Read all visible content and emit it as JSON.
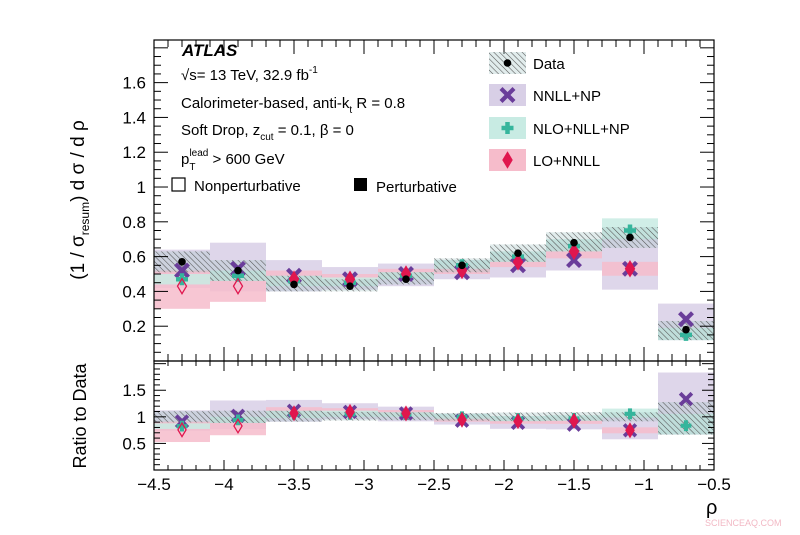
{
  "chart_data": {
    "type": "scatter",
    "experiment": "ATLAS",
    "annotations": {
      "energy": {
        "pre": "√s= 13 TeV, 32.9 fb",
        "sup": "-1"
      },
      "jets": {
        "pre": "Calorimeter-based, anti-k",
        "sub": "t",
        "post": " R = 0.8"
      },
      "grooming": {
        "pre": "Soft Drop, z",
        "sub": "cut",
        "post": " = 0.1, β = 0"
      },
      "pt": {
        "pre": "p",
        "sub": "T",
        "sup": "lead",
        "post": " > 600 GeV"
      },
      "nonpert": "Nonperturbative",
      "pert": "Perturbative"
    },
    "ylabel": {
      "pre": "(1 / σ",
      "sub": "resum",
      "post": ") d σ / d ρ"
    },
    "ratio_ylabel": "Ratio to Data",
    "xlabel": "ρ",
    "xlim": [
      -4.5,
      -0.5
    ],
    "ylim": [
      0,
      1.845
    ],
    "ratio_ylim": [
      0,
      2.05
    ],
    "x_ticks": [
      "-4.5",
      "-4",
      "-3.5",
      "-3",
      "-2.5",
      "-2",
      "-1.5",
      "-1",
      "-0.5"
    ],
    "y_ticks": [
      "0.2",
      "0.4",
      "0.6",
      "0.8",
      "1",
      "1.2",
      "1.4",
      "1.6"
    ],
    "ratio_y_ticks": [
      "0.5",
      "1",
      "1.5"
    ],
    "bin_edges": [
      -4.5,
      -4.1,
      -3.7,
      -3.3,
      -2.9,
      -2.5,
      -2.1,
      -1.7,
      -1.3,
      -0.9,
      -0.5
    ],
    "series": [
      {
        "name": "Data",
        "color": "#000000",
        "marker": "circle",
        "values": [
          0.57,
          0.52,
          0.44,
          0.43,
          0.47,
          0.55,
          0.62,
          0.68,
          0.71,
          0.18
        ],
        "band": [
          [
            0.51,
            0.63
          ],
          [
            0.46,
            0.58
          ],
          [
            0.4,
            0.49
          ],
          [
            0.4,
            0.47
          ],
          [
            0.44,
            0.51
          ],
          [
            0.51,
            0.59
          ],
          [
            0.57,
            0.67
          ],
          [
            0.63,
            0.74
          ],
          [
            0.65,
            0.77
          ],
          [
            0.12,
            0.23
          ]
        ]
      },
      {
        "name": "NNLL+NP",
        "color": "#6a3d9a",
        "band_color": "#d8cfe6",
        "marker": "x",
        "values": [
          0.52,
          0.53,
          0.49,
          0.47,
          0.5,
          0.51,
          0.55,
          0.58,
          0.53,
          0.24
        ],
        "band": [
          [
            0.42,
            0.64
          ],
          [
            0.4,
            0.68
          ],
          [
            0.4,
            0.58
          ],
          [
            0.41,
            0.54
          ],
          [
            0.43,
            0.56
          ],
          [
            0.47,
            0.58
          ],
          [
            0.48,
            0.62
          ],
          [
            0.52,
            0.68
          ],
          [
            0.41,
            0.71
          ],
          [
            0.12,
            0.33
          ]
        ]
      },
      {
        "name": "NLO+NLL+NP",
        "color": "#35b59c",
        "band_color": "#c8ebe3",
        "marker": "plus",
        "values": [
          0.47,
          0.49,
          0.46,
          0.45,
          0.49,
          0.55,
          0.6,
          0.66,
          0.75,
          0.15
        ],
        "band": [
          [
            0.44,
            0.5
          ],
          [
            0.46,
            0.52
          ],
          [
            0.43,
            0.49
          ],
          [
            0.43,
            0.48
          ],
          [
            0.47,
            0.51
          ],
          [
            0.53,
            0.58
          ],
          [
            0.57,
            0.63
          ],
          [
            0.63,
            0.7
          ],
          [
            0.7,
            0.82
          ],
          [
            0.12,
            0.19
          ]
        ]
      },
      {
        "name": "LO+NNLL",
        "color": "#e0174e",
        "band_color": "#f6bccb",
        "marker": "diamond",
        "open": [
          true,
          true,
          false,
          false,
          false,
          false,
          false,
          false,
          false,
          false
        ],
        "values": [
          0.43,
          0.43,
          0.47,
          0.47,
          0.5,
          0.52,
          0.57,
          0.63,
          0.53,
          null
        ],
        "band": [
          [
            0.3,
            0.52
          ],
          [
            0.34,
            0.5
          ],
          [
            0.44,
            0.52
          ],
          [
            0.44,
            0.5
          ],
          [
            0.48,
            0.53
          ],
          [
            0.5,
            0.55
          ],
          [
            0.54,
            0.6
          ],
          [
            0.59,
            0.67
          ],
          [
            0.49,
            0.57
          ],
          null
        ]
      }
    ]
  },
  "watermark": "SCIENCEAQ.COM"
}
